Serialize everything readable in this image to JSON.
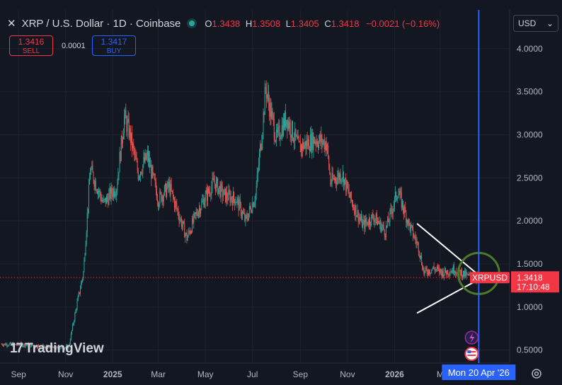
{
  "header": {
    "close_label": "✕",
    "title": "XRP / U.S. Dollar · 1D · Coinbase",
    "ohlc": [
      {
        "k": "O",
        "v": "1.3438"
      },
      {
        "k": "H",
        "v": "1.3508"
      },
      {
        "k": "L",
        "v": "1.3405"
      },
      {
        "k": "C",
        "v": "1.3418"
      }
    ],
    "change": "−0.0021 (−0.16%)"
  },
  "trade": {
    "sell_price": "1.3416",
    "sell_label": "SELL",
    "spread": "0.0001",
    "buy_price": "1.3417",
    "buy_label": "BUY"
  },
  "currency": "USD",
  "logo_text": "TradingView",
  "colors": {
    "up": "#26a69a",
    "down": "#ef5350",
    "cursor": "#2962ff",
    "price_tag": "#f23645",
    "circle": "#4c7a2a"
  },
  "chart_data": {
    "type": "candlestick",
    "symbol": "XRPUSD",
    "last_price": "1.3418",
    "countdown": "17:10:48",
    "crosshair_date": "Mon 20 Apr '26",
    "y_ticks": [
      "0.5000",
      "1.0000",
      "1.5000",
      "2.0000",
      "2.5000",
      "3.0000",
      "3.5000",
      "4.0000"
    ],
    "ylim": [
      0.35,
      4.45
    ],
    "x_ticks": [
      {
        "label": "Sep",
        "date": "2024-09-01",
        "major": false
      },
      {
        "label": "Nov",
        "date": "2024-11-01",
        "major": false
      },
      {
        "label": "2025",
        "date": "2025-01-01",
        "major": true
      },
      {
        "label": "Mar",
        "date": "2025-03-01",
        "major": false
      },
      {
        "label": "May",
        "date": "2025-05-01",
        "major": false
      },
      {
        "label": "Jul",
        "date": "2025-07-01",
        "major": false
      },
      {
        "label": "Sep",
        "date": "2025-09-01",
        "major": false
      },
      {
        "label": "Nov",
        "date": "2025-11-01",
        "major": false
      },
      {
        "label": "2026",
        "date": "2026-01-01",
        "major": true
      },
      {
        "label": "M",
        "date": "2026-03-01",
        "major": false
      }
    ],
    "xlim": [
      "2024-08-08",
      "2026-05-30"
    ],
    "price_path": [
      {
        "date": "2024-08-10",
        "close": 0.57
      },
      {
        "date": "2024-09-15",
        "close": 0.56
      },
      {
        "date": "2024-10-20",
        "close": 0.52
      },
      {
        "date": "2024-11-05",
        "close": 0.54
      },
      {
        "date": "2024-11-16",
        "close": 1.05
      },
      {
        "date": "2024-11-24",
        "close": 1.4
      },
      {
        "date": "2024-12-03",
        "close": 2.6
      },
      {
        "date": "2024-12-20",
        "close": 2.2
      },
      {
        "date": "2025-01-06",
        "close": 2.4
      },
      {
        "date": "2025-01-16",
        "close": 3.2
      },
      {
        "date": "2025-01-22",
        "close": 3.05
      },
      {
        "date": "2025-02-03",
        "close": 2.55
      },
      {
        "date": "2025-02-15",
        "close": 2.75
      },
      {
        "date": "2025-03-01",
        "close": 2.25
      },
      {
        "date": "2025-03-15",
        "close": 2.4
      },
      {
        "date": "2025-04-07",
        "close": 1.8
      },
      {
        "date": "2025-04-20",
        "close": 2.1
      },
      {
        "date": "2025-05-12",
        "close": 2.45
      },
      {
        "date": "2025-05-25",
        "close": 2.3
      },
      {
        "date": "2025-06-10",
        "close": 2.25
      },
      {
        "date": "2025-06-22",
        "close": 2.0
      },
      {
        "date": "2025-07-05",
        "close": 2.3
      },
      {
        "date": "2025-07-14",
        "close": 3.1
      },
      {
        "date": "2025-07-18",
        "close": 3.55
      },
      {
        "date": "2025-08-01",
        "close": 2.95
      },
      {
        "date": "2025-08-14",
        "close": 3.2
      },
      {
        "date": "2025-08-30",
        "close": 2.85
      },
      {
        "date": "2025-09-20",
        "close": 2.95
      },
      {
        "date": "2025-10-05",
        "close": 2.9
      },
      {
        "date": "2025-10-10",
        "close": 2.45
      },
      {
        "date": "2025-10-25",
        "close": 2.55
      },
      {
        "date": "2025-11-05",
        "close": 2.25
      },
      {
        "date": "2025-11-21",
        "close": 1.95
      },
      {
        "date": "2025-12-05",
        "close": 2.05
      },
      {
        "date": "2025-12-20",
        "close": 1.88
      },
      {
        "date": "2026-01-05",
        "close": 2.35
      },
      {
        "date": "2026-01-20",
        "close": 1.95
      },
      {
        "date": "2026-02-01",
        "close": 1.7
      },
      {
        "date": "2026-02-08",
        "close": 1.4
      },
      {
        "date": "2026-02-20",
        "close": 1.45
      },
      {
        "date": "2026-03-05",
        "close": 1.4
      },
      {
        "date": "2026-03-20",
        "close": 1.44
      },
      {
        "date": "2026-04-05",
        "close": 1.36
      },
      {
        "date": "2026-04-20",
        "close": 1.342
      }
    ],
    "drawings": {
      "triangle": [
        {
          "date": "2026-01-30",
          "price": 1.97
        },
        {
          "date": "2026-04-24",
          "price": 1.34
        },
        {
          "date": "2026-01-30",
          "price": 0.93
        }
      ],
      "highlight_circle": {
        "date": "2026-04-20",
        "price": 1.39
      }
    }
  }
}
